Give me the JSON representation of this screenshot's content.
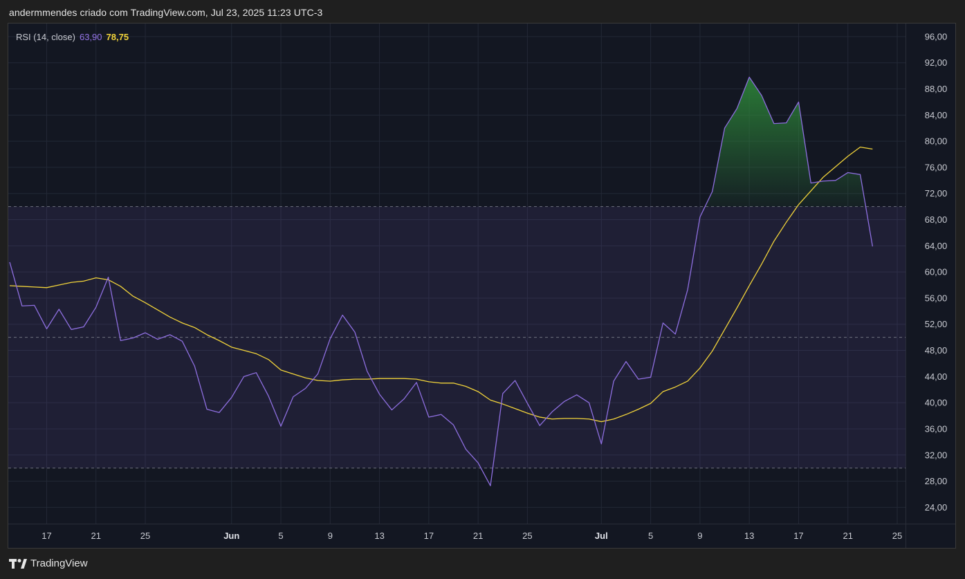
{
  "header": {
    "text": "andermmendes criado com TradingView.com, Jul 23, 2025 11:23 UTC-3"
  },
  "footer": {
    "brand": "TradingView"
  },
  "legend": {
    "name": "RSI (14, close)",
    "rsi_value": "63,90",
    "ma_value": "78,75"
  },
  "colors": {
    "background": "#131722",
    "grid": "#232836",
    "band_fill": "#7e57c2",
    "rsi_line": "#8e6fe0",
    "ma_line": "#f2d43a",
    "overbought_fill": "#2e8b3a",
    "level_line": "#787b86"
  },
  "chart_data": {
    "type": "line",
    "title": "RSI (14, close)",
    "ylim": [
      21.5,
      98
    ],
    "y_ticks": [
      "24,00",
      "28,00",
      "32,00",
      "36,00",
      "40,00",
      "44,00",
      "48,00",
      "52,00",
      "56,00",
      "60,00",
      "64,00",
      "68,00",
      "72,00",
      "76,00",
      "80,00",
      "84,00",
      "88,00",
      "92,00",
      "96,00"
    ],
    "y_tick_values": [
      24,
      28,
      32,
      36,
      40,
      44,
      48,
      52,
      56,
      60,
      64,
      68,
      72,
      76,
      80,
      84,
      88,
      92,
      96
    ],
    "x_ticks": [
      {
        "label": "17",
        "date": "2025-05-17",
        "month": false
      },
      {
        "label": "21",
        "date": "2025-05-21",
        "month": false
      },
      {
        "label": "25",
        "date": "2025-05-25",
        "month": false
      },
      {
        "label": "Jun",
        "date": "2025-06-01",
        "month": true
      },
      {
        "label": "5",
        "date": "2025-06-05",
        "month": false
      },
      {
        "label": "9",
        "date": "2025-06-09",
        "month": false
      },
      {
        "label": "13",
        "date": "2025-06-13",
        "month": false
      },
      {
        "label": "17",
        "date": "2025-06-17",
        "month": false
      },
      {
        "label": "21",
        "date": "2025-06-21",
        "month": false
      },
      {
        "label": "25",
        "date": "2025-06-25",
        "month": false
      },
      {
        "label": "Jul",
        "date": "2025-07-01",
        "month": true
      },
      {
        "label": "5",
        "date": "2025-07-05",
        "month": false
      },
      {
        "label": "9",
        "date": "2025-07-09",
        "month": false
      },
      {
        "label": "13",
        "date": "2025-07-13",
        "month": false
      },
      {
        "label": "17",
        "date": "2025-07-17",
        "month": false
      },
      {
        "label": "21",
        "date": "2025-07-21",
        "month": false
      },
      {
        "label": "25",
        "date": "2025-07-25",
        "month": false
      }
    ],
    "xlim": [
      "2025-05-14",
      "2025-07-25"
    ],
    "bands": {
      "upper": 70,
      "middle": 50,
      "lower": 30
    },
    "dates": [
      "2025-05-14",
      "2025-05-15",
      "2025-05-16",
      "2025-05-17",
      "2025-05-18",
      "2025-05-19",
      "2025-05-20",
      "2025-05-21",
      "2025-05-22",
      "2025-05-23",
      "2025-05-24",
      "2025-05-25",
      "2025-05-26",
      "2025-05-27",
      "2025-05-28",
      "2025-05-29",
      "2025-05-30",
      "2025-05-31",
      "2025-06-01",
      "2025-06-02",
      "2025-06-03",
      "2025-06-04",
      "2025-06-05",
      "2025-06-06",
      "2025-06-07",
      "2025-06-08",
      "2025-06-09",
      "2025-06-10",
      "2025-06-11",
      "2025-06-12",
      "2025-06-13",
      "2025-06-14",
      "2025-06-15",
      "2025-06-16",
      "2025-06-17",
      "2025-06-18",
      "2025-06-19",
      "2025-06-20",
      "2025-06-21",
      "2025-06-22",
      "2025-06-23",
      "2025-06-24",
      "2025-06-25",
      "2025-06-26",
      "2025-06-27",
      "2025-06-28",
      "2025-06-29",
      "2025-06-30",
      "2025-07-01",
      "2025-07-02",
      "2025-07-03",
      "2025-07-04",
      "2025-07-05",
      "2025-07-06",
      "2025-07-07",
      "2025-07-08",
      "2025-07-09",
      "2025-07-10",
      "2025-07-11",
      "2025-07-12",
      "2025-07-13",
      "2025-07-14",
      "2025-07-15",
      "2025-07-16",
      "2025-07-17",
      "2025-07-18",
      "2025-07-19",
      "2025-07-20",
      "2025-07-21",
      "2025-07-22",
      "2025-07-23"
    ],
    "series": [
      {
        "name": "RSI",
        "values": [
          61.5,
          54.8,
          54.9,
          51.3,
          54.3,
          51.2,
          51.6,
          54.6,
          59.2,
          49.5,
          49.9,
          50.7,
          49.7,
          50.4,
          49.4,
          45.6,
          39.0,
          38.5,
          40.8,
          44.0,
          44.6,
          41.0,
          36.4,
          40.9,
          42.2,
          44.4,
          49.8,
          53.4,
          50.8,
          44.8,
          41.3,
          38.9,
          40.6,
          43.1,
          37.8,
          38.2,
          36.6,
          32.9,
          30.8,
          27.3,
          41.4,
          43.4,
          39.9,
          36.5,
          38.6,
          40.2,
          41.2,
          40.0,
          33.7,
          43.3,
          46.3,
          43.6,
          43.9,
          52.2,
          50.5,
          57.3,
          68.4,
          72.3,
          82.0,
          85.0,
          89.8,
          87.0,
          82.7,
          82.8,
          86.0,
          73.6,
          73.9,
          74.0,
          75.2,
          74.9,
          63.9
        ]
      },
      {
        "name": "RSI-based MA",
        "values": [
          57.9,
          57.8,
          57.7,
          57.6,
          58.0,
          58.4,
          58.6,
          59.1,
          58.8,
          57.8,
          56.3,
          55.3,
          54.2,
          53.1,
          52.2,
          51.5,
          50.4,
          49.5,
          48.5,
          48.0,
          47.5,
          46.6,
          45.0,
          44.4,
          43.8,
          43.4,
          43.3,
          43.5,
          43.6,
          43.6,
          43.7,
          43.7,
          43.7,
          43.6,
          43.2,
          43.0,
          43.0,
          42.5,
          41.7,
          40.4,
          39.8,
          39.1,
          38.4,
          37.8,
          37.5,
          37.6,
          37.6,
          37.5,
          37.1,
          37.5,
          38.2,
          39.0,
          39.9,
          41.7,
          42.4,
          43.3,
          45.3,
          47.9,
          51.2,
          54.5,
          57.9,
          61.2,
          64.7,
          67.6,
          70.3,
          72.4,
          74.5,
          76.1,
          77.7,
          79.1,
          78.8
        ]
      }
    ]
  }
}
